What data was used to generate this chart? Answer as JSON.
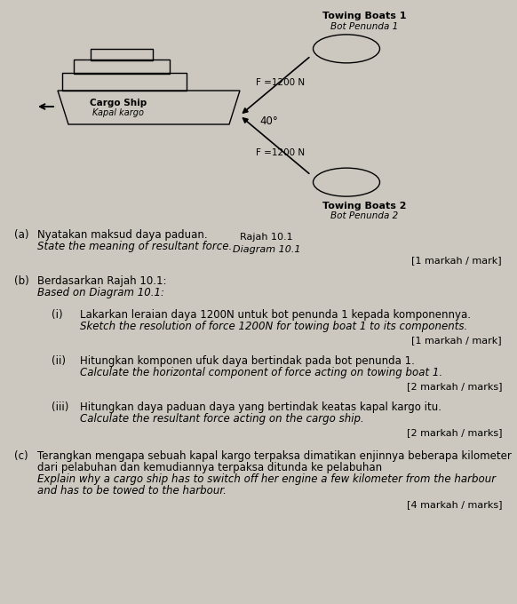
{
  "bg_color": "#cdc8bf",
  "title_diagram": "Rajah 10.1",
  "title_diagram_italic": "Diagram 10.1",
  "towing1_label": "Towing Boats 1",
  "towing1_label_italic": "Bot Penunda 1",
  "towing2_label": "Towing Boats 2",
  "towing2_label_italic": "Bot Penunda 2",
  "cargo_label": "Cargo Ship",
  "cargo_label_italic": "Kapal kargo",
  "force_label": "F =1200 N",
  "angle_label": "40°",
  "qa_label": "(a)",
  "qa_text1": "Nyatakan maksud daya paduan.",
  "qa_text2": "State the meaning of resultant force.",
  "qa_mark": "[1 markah / mark]",
  "qb_label": "(b)",
  "qb_text1": "Berdasarkan Rajah 10.1:",
  "qb_text2": "Based on Diagram 10.1:",
  "qi_label": "(i)",
  "qi_text1": "Lakarkan leraian daya 1200N untuk bot penunda 1 kepada komponennya.",
  "qi_text2": "Sketch the resolution of force 1200N for towing boat 1 to its components.",
  "qi_mark": "[1 markah / mark]",
  "qii_label": "(ii)",
  "qii_text1": "Hitungkan komponen ufuk daya bertindak pada bot penunda 1.",
  "qii_text2": "Calculate the horizontal component of force acting on towing boat 1.",
  "qii_mark": "[2 markah / marks]",
  "qiii_label": "(iii)",
  "qiii_text1": "Hitungkan daya paduan daya yang bertindak keatas kapal kargo itu.",
  "qiii_text2": "Calculate the resultant force acting on the cargo ship.",
  "qiii_mark": "[2 markah / marks]",
  "qc_label": "(c)",
  "qc_text1": "Terangkan mengapa sebuah kapal kargo terpaksa dimatikan enjinnya beberapa kilometer",
  "qc_text2": "dari pelabuhan dan kemudiannya terpaksa ditunda ke pelabuhan",
  "qc_text3": "Explain why a cargo ship has to switch off her engine a few kilometer from the harbour",
  "qc_text4": "and has to be towed to the harbour.",
  "qc_mark": "[4 markah / marks]"
}
